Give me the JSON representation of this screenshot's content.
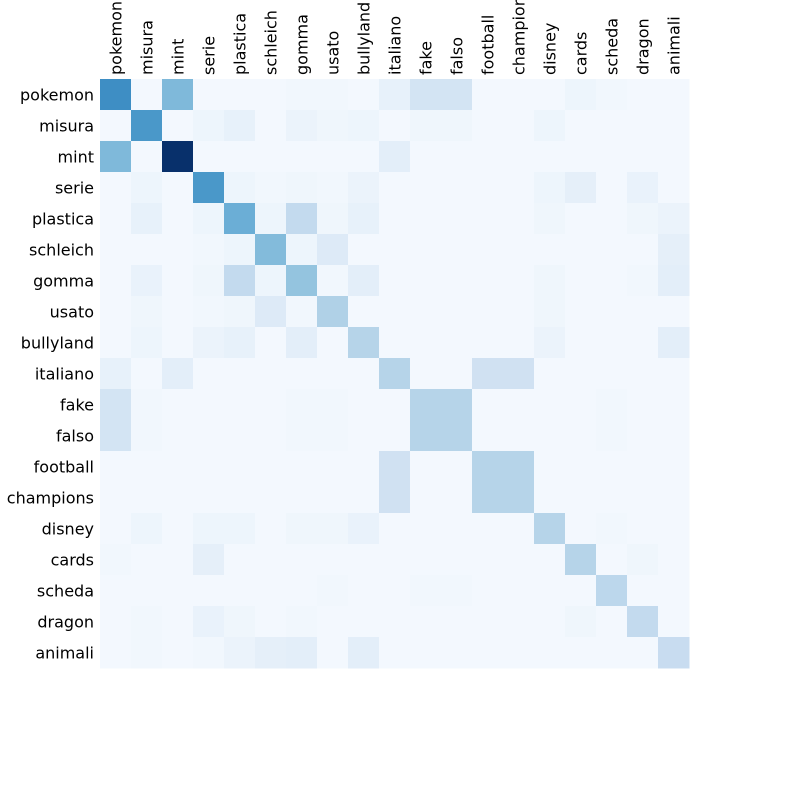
{
  "chart_data": {
    "type": "heatmap",
    "title": "",
    "xlabel": "",
    "ylabel": "",
    "x_labels": [
      "pokemon",
      "misura",
      "mint",
      "serie",
      "plastica",
      "schleich",
      "gomma",
      "usato",
      "bullyland",
      "italiano",
      "fake",
      "falso",
      "football",
      "champions",
      "disney",
      "cards",
      "scheda",
      "dragon",
      "animali"
    ],
    "y_labels": [
      "pokemon",
      "misura",
      "mint",
      "serie",
      "plastica",
      "schleich",
      "gomma",
      "usato",
      "bullyland",
      "italiano",
      "fake",
      "falso",
      "football",
      "champions",
      "disney",
      "cards",
      "scheda",
      "dragon",
      "animali"
    ],
    "x_tick_position": "top",
    "colormap": "Blues",
    "color_range": [
      0,
      1
    ],
    "colorbar": false,
    "grid": false,
    "values": [
      [
        0.64,
        0.02,
        0.45,
        0.02,
        0.02,
        0.02,
        0.03,
        0.03,
        0.02,
        0.08,
        0.18,
        0.18,
        0.02,
        0.02,
        0.02,
        0.05,
        0.03,
        0.02,
        0.02
      ],
      [
        0.02,
        0.6,
        0.02,
        0.05,
        0.08,
        0.02,
        0.06,
        0.04,
        0.05,
        0.02,
        0.04,
        0.04,
        0.02,
        0.02,
        0.05,
        0.02,
        0.02,
        0.02,
        0.02
      ],
      [
        0.45,
        0.02,
        1.0,
        0.02,
        0.02,
        0.02,
        0.02,
        0.02,
        0.02,
        0.1,
        0.02,
        0.02,
        0.02,
        0.02,
        0.02,
        0.02,
        0.02,
        0.02,
        0.02
      ],
      [
        0.02,
        0.05,
        0.02,
        0.6,
        0.05,
        0.03,
        0.04,
        0.03,
        0.06,
        0.02,
        0.02,
        0.02,
        0.02,
        0.02,
        0.05,
        0.09,
        0.02,
        0.07,
        0.02
      ],
      [
        0.02,
        0.08,
        0.02,
        0.05,
        0.5,
        0.05,
        0.26,
        0.04,
        0.08,
        0.02,
        0.02,
        0.02,
        0.02,
        0.02,
        0.04,
        0.02,
        0.02,
        0.04,
        0.06
      ],
      [
        0.02,
        0.02,
        0.02,
        0.03,
        0.05,
        0.44,
        0.05,
        0.13,
        0.02,
        0.02,
        0.02,
        0.02,
        0.02,
        0.02,
        0.02,
        0.02,
        0.02,
        0.02,
        0.09
      ],
      [
        0.02,
        0.07,
        0.02,
        0.04,
        0.26,
        0.05,
        0.4,
        0.03,
        0.1,
        0.02,
        0.02,
        0.02,
        0.02,
        0.02,
        0.04,
        0.02,
        0.02,
        0.03,
        0.1
      ],
      [
        0.02,
        0.04,
        0.02,
        0.03,
        0.04,
        0.13,
        0.03,
        0.32,
        0.02,
        0.02,
        0.02,
        0.02,
        0.02,
        0.02,
        0.04,
        0.02,
        0.02,
        0.02,
        0.02
      ],
      [
        0.02,
        0.05,
        0.02,
        0.06,
        0.08,
        0.02,
        0.1,
        0.02,
        0.3,
        0.02,
        0.02,
        0.02,
        0.02,
        0.02,
        0.06,
        0.02,
        0.02,
        0.02,
        0.1
      ],
      [
        0.08,
        0.02,
        0.1,
        0.02,
        0.02,
        0.02,
        0.02,
        0.02,
        0.02,
        0.3,
        0.02,
        0.02,
        0.2,
        0.2,
        0.02,
        0.02,
        0.02,
        0.02,
        0.02
      ],
      [
        0.18,
        0.03,
        0.02,
        0.02,
        0.02,
        0.02,
        0.03,
        0.03,
        0.02,
        0.02,
        0.3,
        0.3,
        0.02,
        0.02,
        0.02,
        0.02,
        0.03,
        0.02,
        0.02
      ],
      [
        0.18,
        0.03,
        0.02,
        0.02,
        0.02,
        0.02,
        0.03,
        0.03,
        0.02,
        0.02,
        0.3,
        0.3,
        0.02,
        0.02,
        0.02,
        0.02,
        0.03,
        0.02,
        0.02
      ],
      [
        0.02,
        0.02,
        0.02,
        0.02,
        0.02,
        0.02,
        0.02,
        0.02,
        0.02,
        0.2,
        0.02,
        0.02,
        0.3,
        0.3,
        0.02,
        0.02,
        0.02,
        0.02,
        0.02
      ],
      [
        0.02,
        0.02,
        0.02,
        0.02,
        0.02,
        0.02,
        0.02,
        0.02,
        0.02,
        0.2,
        0.02,
        0.02,
        0.3,
        0.3,
        0.02,
        0.02,
        0.02,
        0.02,
        0.02
      ],
      [
        0.02,
        0.05,
        0.02,
        0.05,
        0.05,
        0.02,
        0.04,
        0.04,
        0.07,
        0.02,
        0.02,
        0.02,
        0.02,
        0.02,
        0.3,
        0.02,
        0.03,
        0.02,
        0.02
      ],
      [
        0.03,
        0.02,
        0.02,
        0.09,
        0.02,
        0.02,
        0.02,
        0.02,
        0.02,
        0.02,
        0.02,
        0.02,
        0.02,
        0.02,
        0.02,
        0.3,
        0.02,
        0.04,
        0.02
      ],
      [
        0.02,
        0.02,
        0.02,
        0.02,
        0.02,
        0.02,
        0.02,
        0.03,
        0.02,
        0.02,
        0.03,
        0.03,
        0.02,
        0.02,
        0.02,
        0.02,
        0.28,
        0.02,
        0.02
      ],
      [
        0.02,
        0.03,
        0.02,
        0.07,
        0.04,
        0.02,
        0.03,
        0.02,
        0.02,
        0.02,
        0.02,
        0.02,
        0.02,
        0.02,
        0.02,
        0.04,
        0.02,
        0.26,
        0.02
      ],
      [
        0.02,
        0.03,
        0.02,
        0.03,
        0.06,
        0.09,
        0.1,
        0.02,
        0.1,
        0.02,
        0.02,
        0.02,
        0.02,
        0.02,
        0.02,
        0.02,
        0.02,
        0.02,
        0.24
      ]
    ]
  }
}
